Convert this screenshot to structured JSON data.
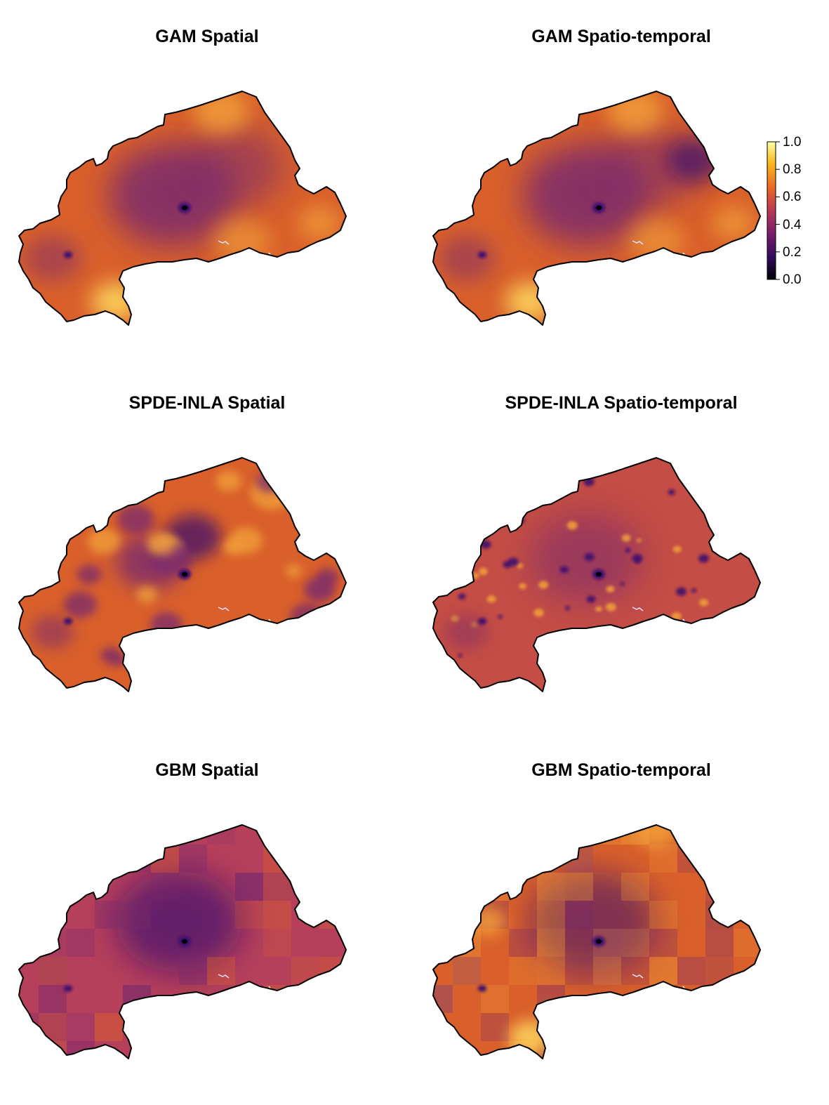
{
  "panels": [
    {
      "title": "GAM Spatial",
      "style": "gam_s"
    },
    {
      "title": "GAM Spatio-temporal",
      "style": "gam_st"
    },
    {
      "title": "SPDE-INLA Spatial",
      "style": "spde_s"
    },
    {
      "title": "SPDE-INLA Spatio-temporal",
      "style": "spde_st"
    },
    {
      "title": "GBM Spatial",
      "style": "gbm_s"
    },
    {
      "title": "GBM Spatio-temporal",
      "style": "gbm_st"
    }
  ],
  "legend": {
    "ticks": [
      "1.0",
      "0.8",
      "0.6",
      "0.4",
      "0.2",
      "0.0"
    ],
    "min": 0.0,
    "max": 1.0,
    "palette": [
      "#000004",
      "#320a5e",
      "#781c6d",
      "#bc3754",
      "#ed6925",
      "#fbb61a",
      "#fcffa4"
    ]
  },
  "colors": {
    "border": "#000000",
    "dark_purple": "#3b0f70",
    "mid_purple": "#7a2a6e",
    "orange": "#d9602b",
    "light_orange": "#f3a23a",
    "yellow": "#fcd35c"
  }
}
